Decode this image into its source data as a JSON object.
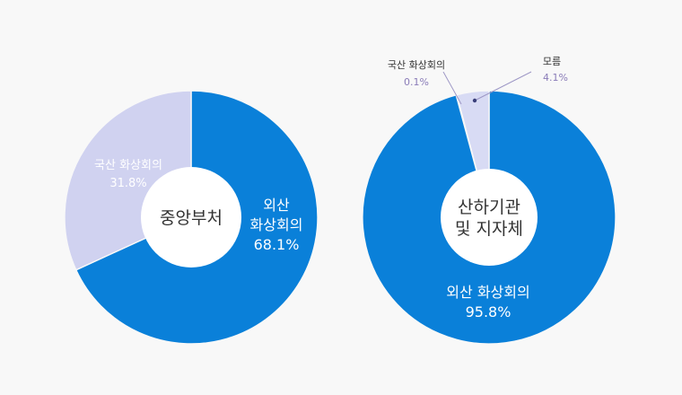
{
  "colors": {
    "background": "#f8f8f8",
    "domestic": "#d0d2f0",
    "foreign": "#0a80d9",
    "unknown": "#d8dbf4",
    "hole": "#ffffff",
    "label_dark": "#333333",
    "label_on_dark": "#ffffff",
    "label_on_light": "#ffffff",
    "small_value": "#8a7cb8",
    "leader": "#9e98c6",
    "leader_dot": "#3a3f7a"
  },
  "chart_data": [
    {
      "type": "pie",
      "center_label": "중앙부처",
      "slices": [
        {
          "label": "외산 화상회의",
          "value": 68.1,
          "value_text": "68.1%",
          "color": "#0a80d9",
          "label_lines": [
            "외산",
            "화상회의"
          ]
        },
        {
          "label": "국산 화상회의",
          "value": 31.8,
          "value_text": "31.8%",
          "color": "#d0d2f0",
          "label_lines": [
            "국산 화상회의"
          ]
        }
      ]
    },
    {
      "type": "pie",
      "center_label": [
        "산하기관",
        "및 지자체"
      ],
      "slices": [
        {
          "label": "외산 화상회의",
          "value": 95.8,
          "value_text": "95.8%",
          "color": "#0a80d9",
          "label_lines": [
            "외산 화상회의"
          ]
        },
        {
          "label": "국산 화상회의",
          "value": 0.1,
          "value_text": "0.1%",
          "color": "#c8cbee",
          "label_lines": [
            "국산 화상회의"
          ]
        },
        {
          "label": "모름",
          "value": 4.1,
          "value_text": "4.1%",
          "color": "#d8dbf4",
          "label_lines": [
            "모름"
          ]
        }
      ]
    }
  ]
}
